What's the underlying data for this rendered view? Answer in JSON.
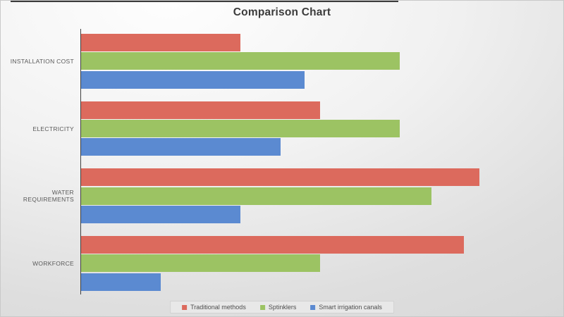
{
  "chart_data": {
    "type": "bar",
    "orientation": "horizontal",
    "title": "Comparison Chart",
    "categories": [
      "INSTALLATION COST",
      "ELECTRICITY",
      "WATER REQUIREMENTS",
      "WORKFORCE"
    ],
    "series": [
      {
        "name": "Traditional methods",
        "color": "#dc6a5d",
        "values": [
          40,
          60,
          100,
          96
        ]
      },
      {
        "name": "Sptinklers",
        "color": "#9cc363",
        "values": [
          80,
          80,
          88,
          60
        ]
      },
      {
        "name": "Smart irrigation canals",
        "color": "#5b8ad1",
        "values": [
          56,
          50,
          40,
          20
        ]
      }
    ],
    "xlim": [
      0,
      118
    ],
    "xlabel": "",
    "ylabel": "",
    "grid": false,
    "x_axis_tick_labels_visible": false,
    "legend_position": "bottom-center",
    "bar_row_order_top_to_bottom": [
      "Traditional methods",
      "Sptinklers",
      "Smart irrigation canals"
    ]
  },
  "style_tokens": {
    "title_color": "#3b3b3b",
    "label_color": "#595959",
    "axis_line_color": "#3f3f3f",
    "legend_bg": "#e8e8e8"
  }
}
